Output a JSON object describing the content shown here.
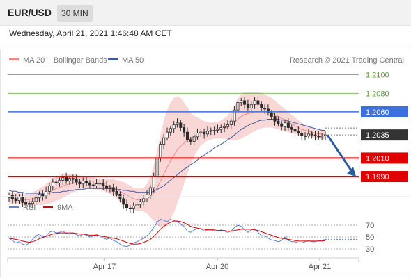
{
  "header": {
    "symbol": "EUR/USD",
    "timeframe": "30 MIN",
    "datetime": "Wednesday, April 21, 2021 1:46:48 AM CET"
  },
  "legend": {
    "ma20_label": "MA 20 + Bollinger Bands",
    "ma50_label": "MA 50",
    "credit": "Research © 2021 Trading Central"
  },
  "rsi_legend": {
    "rsi_label": "RSI",
    "ma_label": "9MA"
  },
  "colors": {
    "ma20": "#f08a8a",
    "ma50": "#3b5aa8",
    "band_fill": "#f7c9c9",
    "candle": "#2a2a2a",
    "green_level": "#5aa02c",
    "blue_level": "#3d6fe0",
    "red_level": "#e00000",
    "current_price_bg": "#333333",
    "arrow": "#2c5aa0",
    "rsi_line": "#5a82e0",
    "rsi_ma": "#e00000"
  },
  "chart_data": [
    {
      "type": "line",
      "x_ticks": [
        "Apr 17",
        "Apr 20",
        "Apr 21"
      ],
      "ylim": [
        1.1975,
        1.2108
      ],
      "levels": [
        {
          "value": 1.21,
          "label": "1.2100",
          "kind": "resistance-green"
        },
        {
          "value": 1.208,
          "label": "1.2080",
          "kind": "resistance-green"
        },
        {
          "value": 1.206,
          "label": "1.2060",
          "kind": "pivot-blue"
        },
        {
          "value": 1.2035,
          "label": "1.2035",
          "kind": "current-price"
        },
        {
          "value": 1.201,
          "label": "1.2010",
          "kind": "support-red"
        },
        {
          "value": 1.199,
          "label": "1.1990",
          "kind": "support-red"
        }
      ],
      "price_close": [
        1.197,
        1.1966,
        1.1964,
        1.1968,
        1.1962,
        1.196,
        1.1961,
        1.1963,
        1.1967,
        1.1971,
        1.1969,
        1.1974,
        1.198,
        1.1984,
        1.1983,
        1.1986,
        1.1989,
        1.1985,
        1.1988,
        1.1987,
        1.1984,
        1.1982,
        1.1985,
        1.1983,
        1.1981,
        1.198,
        1.1982,
        1.1983,
        1.198,
        1.1977,
        1.1978,
        1.1974,
        1.1971,
        1.1966,
        1.196,
        1.1956,
        1.1955,
        1.1958,
        1.196,
        1.1963,
        1.1966,
        1.197,
        1.1978,
        1.199,
        1.201,
        1.2025,
        1.2032,
        1.2038,
        1.2042,
        1.2046,
        1.2048,
        1.2043,
        1.2038,
        1.203,
        1.2028,
        1.2033,
        1.2037,
        1.2038,
        1.2036,
        1.2039,
        1.204,
        1.204,
        1.2041,
        1.2043,
        1.2044,
        1.2046,
        1.205,
        1.2062,
        1.207,
        1.2072,
        1.2068,
        1.2064,
        1.2068,
        1.2072,
        1.2068,
        1.2064,
        1.2063,
        1.2059,
        1.2055,
        1.205,
        1.2047,
        1.2044,
        1.2048,
        1.2043,
        1.2041,
        1.2039,
        1.2037,
        1.2034,
        1.2034,
        1.2036,
        1.2035,
        1.2034,
        1.2033,
        1.2034,
        1.2035
      ],
      "ma20": [
        1.1967,
        1.1967,
        1.1966,
        1.1966,
        1.1965,
        1.1965,
        1.1965,
        1.1966,
        1.1967,
        1.1968,
        1.1969,
        1.1971,
        1.1973,
        1.1975,
        1.1977,
        1.1978,
        1.198,
        1.1981,
        1.1982,
        1.1983,
        1.1983,
        1.1983,
        1.1984,
        1.1984,
        1.1983,
        1.1983,
        1.1982,
        1.1982,
        1.1981,
        1.198,
        1.1979,
        1.1978,
        1.1976,
        1.1974,
        1.1972,
        1.197,
        1.1968,
        1.1966,
        1.1965,
        1.1965,
        1.1965,
        1.1966,
        1.1968,
        1.1972,
        1.1978,
        1.1985,
        1.1993,
        1.2,
        1.2007,
        1.2013,
        1.2019,
        1.2023,
        1.2026,
        1.2029,
        1.2031,
        1.2034,
        1.2036,
        1.2038,
        1.2038,
        1.2039,
        1.2039,
        1.204,
        1.204,
        1.2041,
        1.2042,
        1.2043,
        1.2045,
        1.2048,
        1.2052,
        1.2055,
        1.2057,
        1.2058,
        1.2059,
        1.206,
        1.2061,
        1.2061,
        1.2061,
        1.206,
        1.2059,
        1.2057,
        1.2055,
        1.2053,
        1.2051,
        1.2049,
        1.2047,
        1.2045,
        1.2043,
        1.2041,
        1.204,
        1.2039,
        1.2038,
        1.2037,
        1.2036,
        1.2036,
        1.2035
      ],
      "ma50": [
        1.1975,
        1.1974,
        1.1974,
        1.1973,
        1.1973,
        1.1972,
        1.1972,
        1.1972,
        1.1972,
        1.1972,
        1.1972,
        1.1972,
        1.1972,
        1.1973,
        1.1973,
        1.1973,
        1.1974,
        1.1974,
        1.1975,
        1.1975,
        1.1976,
        1.1976,
        1.1976,
        1.1977,
        1.1977,
        1.1977,
        1.1977,
        1.1977,
        1.1977,
        1.1977,
        1.1977,
        1.1977,
        1.1976,
        1.1976,
        1.1975,
        1.1975,
        1.1974,
        1.1974,
        1.1973,
        1.1973,
        1.1973,
        1.1973,
        1.1973,
        1.1974,
        1.1976,
        1.1978,
        1.198,
        1.1983,
        1.1986,
        1.1989,
        1.1992,
        1.1995,
        1.1998,
        1.2,
        1.2003,
        1.2005,
        1.2008,
        1.2011,
        1.2013,
        1.2016,
        1.2018,
        1.2021,
        1.2023,
        1.2025,
        1.2027,
        1.203,
        1.2032,
        1.2035,
        1.2038,
        1.2041,
        1.2043,
        1.2045,
        1.2047,
        1.2048,
        1.205,
        1.2051,
        1.2051,
        1.2052,
        1.2052,
        1.2052,
        1.2052,
        1.2051,
        1.2051,
        1.205,
        1.2049,
        1.2048,
        1.2047,
        1.2046,
        1.2045,
        1.2044,
        1.2043,
        1.2042,
        1.2041,
        1.204,
        1.204
      ],
      "band_width": [
        0.0006,
        0.0006,
        0.0006,
        0.0006,
        0.0006,
        0.0006,
        0.0006,
        0.0007,
        0.0008,
        0.0009,
        0.001,
        0.0011,
        0.0012,
        0.0013,
        0.0013,
        0.0013,
        0.0013,
        0.0012,
        0.0011,
        0.001,
        0.0009,
        0.0008,
        0.0007,
        0.0006,
        0.0006,
        0.0006,
        0.0006,
        0.0006,
        0.0006,
        0.0007,
        0.0008,
        0.0009,
        0.001,
        0.0011,
        0.0012,
        0.0012,
        0.0012,
        0.0012,
        0.0012,
        0.0012,
        0.0013,
        0.0016,
        0.0022,
        0.003,
        0.004,
        0.005,
        0.0058,
        0.0062,
        0.0063,
        0.0062,
        0.0058,
        0.0052,
        0.0044,
        0.0036,
        0.0028,
        0.0022,
        0.0018,
        0.0014,
        0.0012,
        0.001,
        0.0009,
        0.0009,
        0.0009,
        0.001,
        0.0011,
        0.0013,
        0.0016,
        0.0019,
        0.0022,
        0.0024,
        0.0024,
        0.0023,
        0.0022,
        0.0021,
        0.002,
        0.0019,
        0.0018,
        0.0017,
        0.0016,
        0.0015,
        0.0014,
        0.0013,
        0.0012,
        0.0011,
        0.001,
        0.0009,
        0.0008,
        0.0007,
        0.0006,
        0.0006,
        0.0005,
        0.0005,
        0.0005,
        0.0005,
        0.0005
      ],
      "forecast": {
        "from": 1.2035,
        "to": 1.199
      }
    },
    {
      "type": "line",
      "yticks": [
        70,
        50,
        30
      ],
      "ylim": [
        10,
        90
      ],
      "rsi": [
        48,
        44,
        40,
        42,
        38,
        36,
        40,
        46,
        52,
        55,
        50,
        52,
        58,
        60,
        57,
        58,
        60,
        56,
        55,
        57,
        54,
        52,
        55,
        53,
        50,
        52,
        54,
        52,
        48,
        46,
        48,
        44,
        42,
        38,
        35,
        34,
        36,
        40,
        42,
        45,
        48,
        52,
        58,
        66,
        75,
        80,
        78,
        76,
        80,
        78,
        76,
        72,
        68,
        60,
        58,
        62,
        64,
        64,
        60,
        62,
        62,
        60,
        60,
        62,
        60,
        58,
        60,
        66,
        70,
        68,
        62,
        58,
        62,
        64,
        58,
        52,
        52,
        48,
        45,
        44,
        42,
        44,
        50,
        44,
        42,
        42,
        40,
        40,
        42,
        44,
        42,
        42,
        44,
        44,
        46
      ],
      "rsi_ma": [
        48,
        47,
        46,
        45,
        43,
        42,
        41,
        42,
        44,
        47,
        49,
        51,
        53,
        55,
        56,
        57,
        57,
        57,
        57,
        57,
        56,
        55,
        55,
        54,
        53,
        53,
        53,
        52,
        51,
        50,
        49,
        48,
        47,
        45,
        43,
        41,
        39,
        38,
        38,
        39,
        41,
        43,
        46,
        51,
        57,
        63,
        68,
        72,
        75,
        77,
        77,
        76,
        74,
        71,
        68,
        66,
        65,
        64,
        63,
        62,
        62,
        62,
        61,
        61,
        61,
        60,
        60,
        61,
        62,
        63,
        63,
        63,
        63,
        62,
        61,
        59,
        57,
        55,
        53,
        51,
        49,
        48,
        47,
        46,
        45,
        44,
        43,
        43,
        43,
        43,
        43,
        43,
        43,
        43,
        44
      ]
    }
  ]
}
